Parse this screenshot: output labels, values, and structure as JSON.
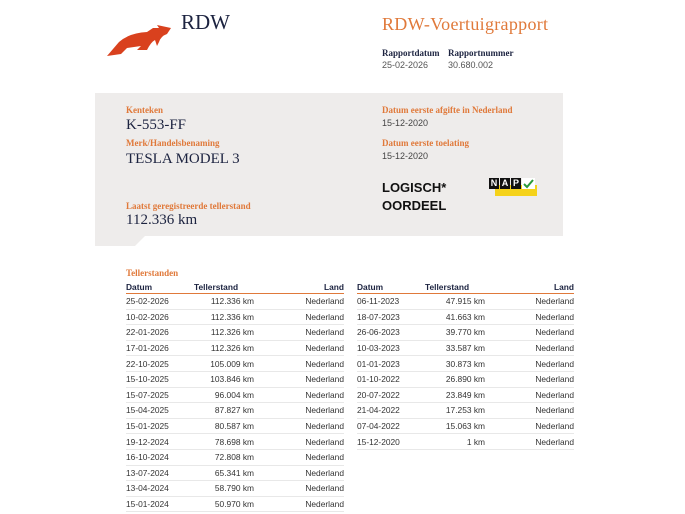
{
  "header": {
    "logo_text": "RDW",
    "title": "RDW-Voertuigrapport",
    "report_date_label": "Rapportdatum",
    "report_date": "25-02-2026",
    "report_number_label": "Rapportnummer",
    "report_number": "30.680.002"
  },
  "vehicle": {
    "plate_label": "Kenteken",
    "plate": "K-553-FF",
    "brand_label": "Merk/Handelsbenaming",
    "brand": "TESLA MODEL 3",
    "odometer_label": "Laatst geregistreerde tellerstand",
    "odometer": "112.336 km",
    "first_nl_label": "Datum eerste afgifte in Nederland",
    "first_nl": "15-12-2020",
    "first_admission_label": "Datum eerste toelating",
    "first_admission": "15-12-2020",
    "verdict_line1": "LOGISCH*",
    "verdict_line2": "OORDEEL",
    "nap_letters": [
      "N",
      "A",
      "P"
    ]
  },
  "readings": {
    "title": "Tellerstanden",
    "columns": [
      "Datum",
      "Tellerstand",
      "Land"
    ],
    "left": [
      [
        "25-02-2026",
        "112.336 km",
        "Nederland"
      ],
      [
        "10-02-2026",
        "112.336 km",
        "Nederland"
      ],
      [
        "22-01-2026",
        "112.326 km",
        "Nederland"
      ],
      [
        "17-01-2026",
        "112.326 km",
        "Nederland"
      ],
      [
        "22-10-2025",
        "105.009 km",
        "Nederland"
      ],
      [
        "15-10-2025",
        "103.846 km",
        "Nederland"
      ],
      [
        "15-07-2025",
        "96.004 km",
        "Nederland"
      ],
      [
        "15-04-2025",
        "87.827 km",
        "Nederland"
      ],
      [
        "15-01-2025",
        "80.587 km",
        "Nederland"
      ],
      [
        "19-12-2024",
        "78.698 km",
        "Nederland"
      ],
      [
        "16-10-2024",
        "72.808 km",
        "Nederland"
      ],
      [
        "13-07-2024",
        "65.341 km",
        "Nederland"
      ],
      [
        "13-04-2024",
        "58.790 km",
        "Nederland"
      ],
      [
        "15-01-2024",
        "50.970 km",
        "Nederland"
      ]
    ],
    "right": [
      [
        "06-11-2023",
        "47.915 km",
        "Nederland"
      ],
      [
        "18-07-2023",
        "41.663 km",
        "Nederland"
      ],
      [
        "26-06-2023",
        "39.770 km",
        "Nederland"
      ],
      [
        "10-03-2023",
        "33.587 km",
        "Nederland"
      ],
      [
        "01-01-2023",
        "30.873 km",
        "Nederland"
      ],
      [
        "01-10-2022",
        "26.890 km",
        "Nederland"
      ],
      [
        "20-07-2022",
        "23.849 km",
        "Nederland"
      ],
      [
        "21-04-2022",
        "17.253 km",
        "Nederland"
      ],
      [
        "07-04-2022",
        "15.063 km",
        "Nederland"
      ],
      [
        "15-12-2020",
        "1 km",
        "Nederland"
      ]
    ]
  },
  "colors": {
    "accent": "#e0793a",
    "logo": "#d9411e",
    "navy": "#1c2340",
    "panel": "#eeeceb",
    "nap_yellow": "#f5d21a"
  }
}
